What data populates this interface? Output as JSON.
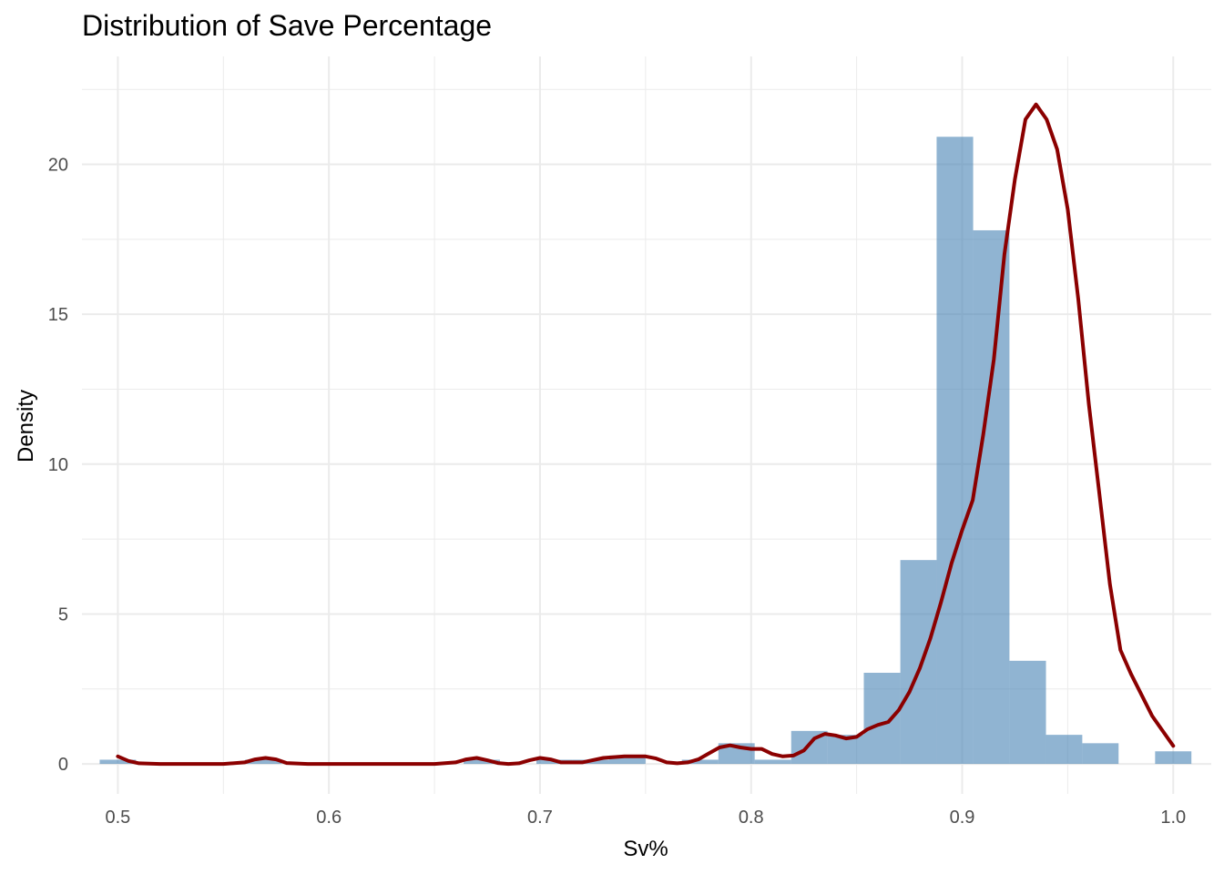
{
  "chart_data": {
    "type": "histogram",
    "title": "Distribution of Save Percentage",
    "xlabel": "Sv%",
    "ylabel": "Density",
    "xlim": [
      0.483,
      1.018
    ],
    "ylim": [
      -1.0,
      23.6
    ],
    "x_ticks": [
      {
        "value": 0.5,
        "label": "0.5"
      },
      {
        "value": 0.6,
        "label": "0.6"
      },
      {
        "value": 0.7,
        "label": "0.7"
      },
      {
        "value": 0.8,
        "label": "0.8"
      },
      {
        "value": 0.9,
        "label": "0.9"
      },
      {
        "value": 1.0,
        "label": "1.0"
      }
    ],
    "y_ticks": [
      {
        "value": 0,
        "label": "0"
      },
      {
        "value": 5,
        "label": "5"
      },
      {
        "value": 10,
        "label": "10"
      },
      {
        "value": 15,
        "label": "15"
      },
      {
        "value": 20,
        "label": "20"
      }
    ],
    "grid": true,
    "colors": {
      "bars": "#4682B4",
      "density": "#8B0000",
      "grid": "#ebebeb"
    },
    "histogram": {
      "bin_width": 0.01724,
      "bins": [
        {
          "x0": 0.4914,
          "x1": 0.5086,
          "density": 0.14
        },
        {
          "x0": 0.5086,
          "x1": 0.5259,
          "density": 0.0
        },
        {
          "x0": 0.5259,
          "x1": 0.5431,
          "density": 0.0
        },
        {
          "x0": 0.5431,
          "x1": 0.5603,
          "density": 0.0
        },
        {
          "x0": 0.5603,
          "x1": 0.5776,
          "density": 0.14
        },
        {
          "x0": 0.5776,
          "x1": 0.5948,
          "density": 0.0
        },
        {
          "x0": 0.5948,
          "x1": 0.6121,
          "density": 0.0
        },
        {
          "x0": 0.6121,
          "x1": 0.6293,
          "density": 0.0
        },
        {
          "x0": 0.6293,
          "x1": 0.6466,
          "density": 0.0
        },
        {
          "x0": 0.6466,
          "x1": 0.6638,
          "density": 0.0
        },
        {
          "x0": 0.6638,
          "x1": 0.681,
          "density": 0.14
        },
        {
          "x0": 0.681,
          "x1": 0.6983,
          "density": 0.0
        },
        {
          "x0": 0.6983,
          "x1": 0.7155,
          "density": 0.14
        },
        {
          "x0": 0.7155,
          "x1": 0.7328,
          "density": 0.14
        },
        {
          "x0": 0.7328,
          "x1": 0.75,
          "density": 0.28
        },
        {
          "x0": 0.75,
          "x1": 0.7672,
          "density": 0.0
        },
        {
          "x0": 0.7672,
          "x1": 0.7845,
          "density": 0.14
        },
        {
          "x0": 0.7845,
          "x1": 0.8017,
          "density": 0.69
        },
        {
          "x0": 0.8017,
          "x1": 0.819,
          "density": 0.14
        },
        {
          "x0": 0.819,
          "x1": 0.8362,
          "density": 1.1
        },
        {
          "x0": 0.8362,
          "x1": 0.8534,
          "density": 0.97
        },
        {
          "x0": 0.8534,
          "x1": 0.8707,
          "density": 3.04
        },
        {
          "x0": 0.8707,
          "x1": 0.8879,
          "density": 6.8
        },
        {
          "x0": 0.8879,
          "x1": 0.9052,
          "density": 20.92
        },
        {
          "x0": 0.9052,
          "x1": 0.9224,
          "density": 17.8
        },
        {
          "x0": 0.9224,
          "x1": 0.9397,
          "density": 3.44
        },
        {
          "x0": 0.9397,
          "x1": 0.9569,
          "density": 0.97
        },
        {
          "x0": 0.9569,
          "x1": 0.9741,
          "density": 0.69
        },
        {
          "x0": 0.9741,
          "x1": 0.9914,
          "density": 0.0
        },
        {
          "x0": 0.9914,
          "x1": 1.0086,
          "density": 0.42
        }
      ]
    },
    "density_curve": [
      [
        0.5,
        0.25
      ],
      [
        0.505,
        0.1
      ],
      [
        0.51,
        0.02
      ],
      [
        0.52,
        0.0
      ],
      [
        0.55,
        0.0
      ],
      [
        0.56,
        0.05
      ],
      [
        0.565,
        0.15
      ],
      [
        0.57,
        0.2
      ],
      [
        0.575,
        0.15
      ],
      [
        0.58,
        0.03
      ],
      [
        0.59,
        0.0
      ],
      [
        0.65,
        0.0
      ],
      [
        0.66,
        0.05
      ],
      [
        0.665,
        0.15
      ],
      [
        0.67,
        0.2
      ],
      [
        0.675,
        0.12
      ],
      [
        0.68,
        0.03
      ],
      [
        0.685,
        0.0
      ],
      [
        0.69,
        0.02
      ],
      [
        0.695,
        0.12
      ],
      [
        0.7,
        0.2
      ],
      [
        0.705,
        0.15
      ],
      [
        0.71,
        0.05
      ],
      [
        0.72,
        0.05
      ],
      [
        0.73,
        0.2
      ],
      [
        0.74,
        0.25
      ],
      [
        0.75,
        0.25
      ],
      [
        0.755,
        0.18
      ],
      [
        0.76,
        0.05
      ],
      [
        0.765,
        0.02
      ],
      [
        0.77,
        0.05
      ],
      [
        0.775,
        0.15
      ],
      [
        0.78,
        0.35
      ],
      [
        0.785,
        0.55
      ],
      [
        0.79,
        0.62
      ],
      [
        0.795,
        0.55
      ],
      [
        0.8,
        0.5
      ],
      [
        0.805,
        0.5
      ],
      [
        0.81,
        0.33
      ],
      [
        0.815,
        0.25
      ],
      [
        0.82,
        0.28
      ],
      [
        0.825,
        0.45
      ],
      [
        0.83,
        0.85
      ],
      [
        0.835,
        1.0
      ],
      [
        0.84,
        0.95
      ],
      [
        0.845,
        0.85
      ],
      [
        0.85,
        0.9
      ],
      [
        0.855,
        1.15
      ],
      [
        0.86,
        1.3
      ],
      [
        0.865,
        1.4
      ],
      [
        0.87,
        1.8
      ],
      [
        0.875,
        2.4
      ],
      [
        0.88,
        3.2
      ],
      [
        0.885,
        4.2
      ],
      [
        0.89,
        5.4
      ],
      [
        0.895,
        6.7
      ],
      [
        0.9,
        7.8
      ],
      [
        0.905,
        8.8
      ],
      [
        0.91,
        11.0
      ],
      [
        0.915,
        13.5
      ],
      [
        0.92,
        17.0
      ],
      [
        0.925,
        19.5
      ],
      [
        0.93,
        21.5
      ],
      [
        0.935,
        22.0
      ],
      [
        0.94,
        21.5
      ],
      [
        0.945,
        20.5
      ],
      [
        0.95,
        18.5
      ],
      [
        0.955,
        15.5
      ],
      [
        0.96,
        12.0
      ],
      [
        0.965,
        9.0
      ],
      [
        0.97,
        6.0
      ],
      [
        0.975,
        3.8
      ],
      [
        0.98,
        3.0
      ],
      [
        0.985,
        2.3
      ],
      [
        0.99,
        1.6
      ],
      [
        0.995,
        1.1
      ],
      [
        1.0,
        0.6
      ]
    ]
  }
}
